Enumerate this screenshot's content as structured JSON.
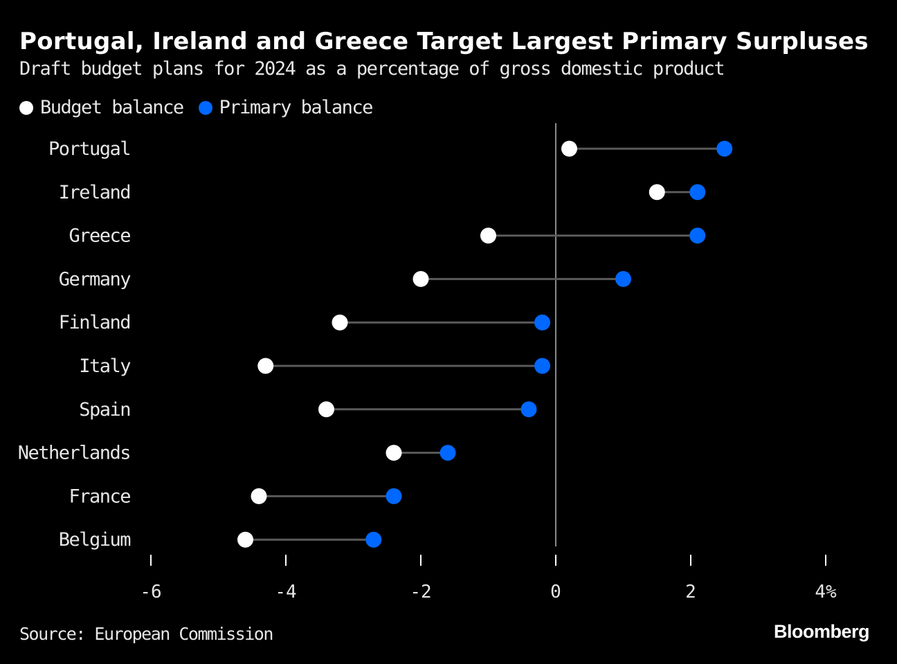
{
  "header": {
    "title": "Portugal, Ireland and Greece Target Largest Primary Surpluses",
    "subtitle": "Draft budget plans for 2024 as a percentage of gross domestic product"
  },
  "legend": {
    "items": [
      {
        "label": "Budget balance",
        "color": "#ffffff"
      },
      {
        "label": "Primary balance",
        "color": "#0068ff"
      }
    ]
  },
  "footer": {
    "source": "Source: European Commission",
    "brand": "Bloomberg"
  },
  "colors": {
    "budget": "#ffffff",
    "primary": "#0068ff",
    "connector": "#5a5a5a",
    "zero_line": "#8a8a8a",
    "tick": "#ffffff"
  },
  "chart_data": {
    "type": "dumbbell",
    "title": "Portugal, Ireland and Greece Target Largest Primary Surpluses",
    "subtitle": "Draft budget plans for 2024 as a percentage of gross domestic product",
    "xlabel": "",
    "ylabel": "",
    "xlim": [
      -6,
      4
    ],
    "x_ticks": [
      -6,
      -4,
      -2,
      0,
      2,
      4
    ],
    "x_tick_labels": [
      "-6",
      "-4",
      "-2",
      "0",
      "2",
      "4%"
    ],
    "categories": [
      "Portugal",
      "Ireland",
      "Greece",
      "Germany",
      "Finland",
      "Italy",
      "Spain",
      "Netherlands",
      "France",
      "Belgium"
    ],
    "series": [
      {
        "name": "Budget balance",
        "values": [
          0.2,
          1.5,
          -1.0,
          -2.0,
          -3.2,
          -4.3,
          -3.4,
          -2.4,
          -4.4,
          -4.6
        ]
      },
      {
        "name": "Primary balance",
        "values": [
          2.5,
          2.1,
          2.1,
          1.0,
          -0.2,
          -0.2,
          -0.4,
          -1.6,
          -2.4,
          -2.7
        ]
      }
    ],
    "legend_position": "top-left",
    "grid": false
  }
}
